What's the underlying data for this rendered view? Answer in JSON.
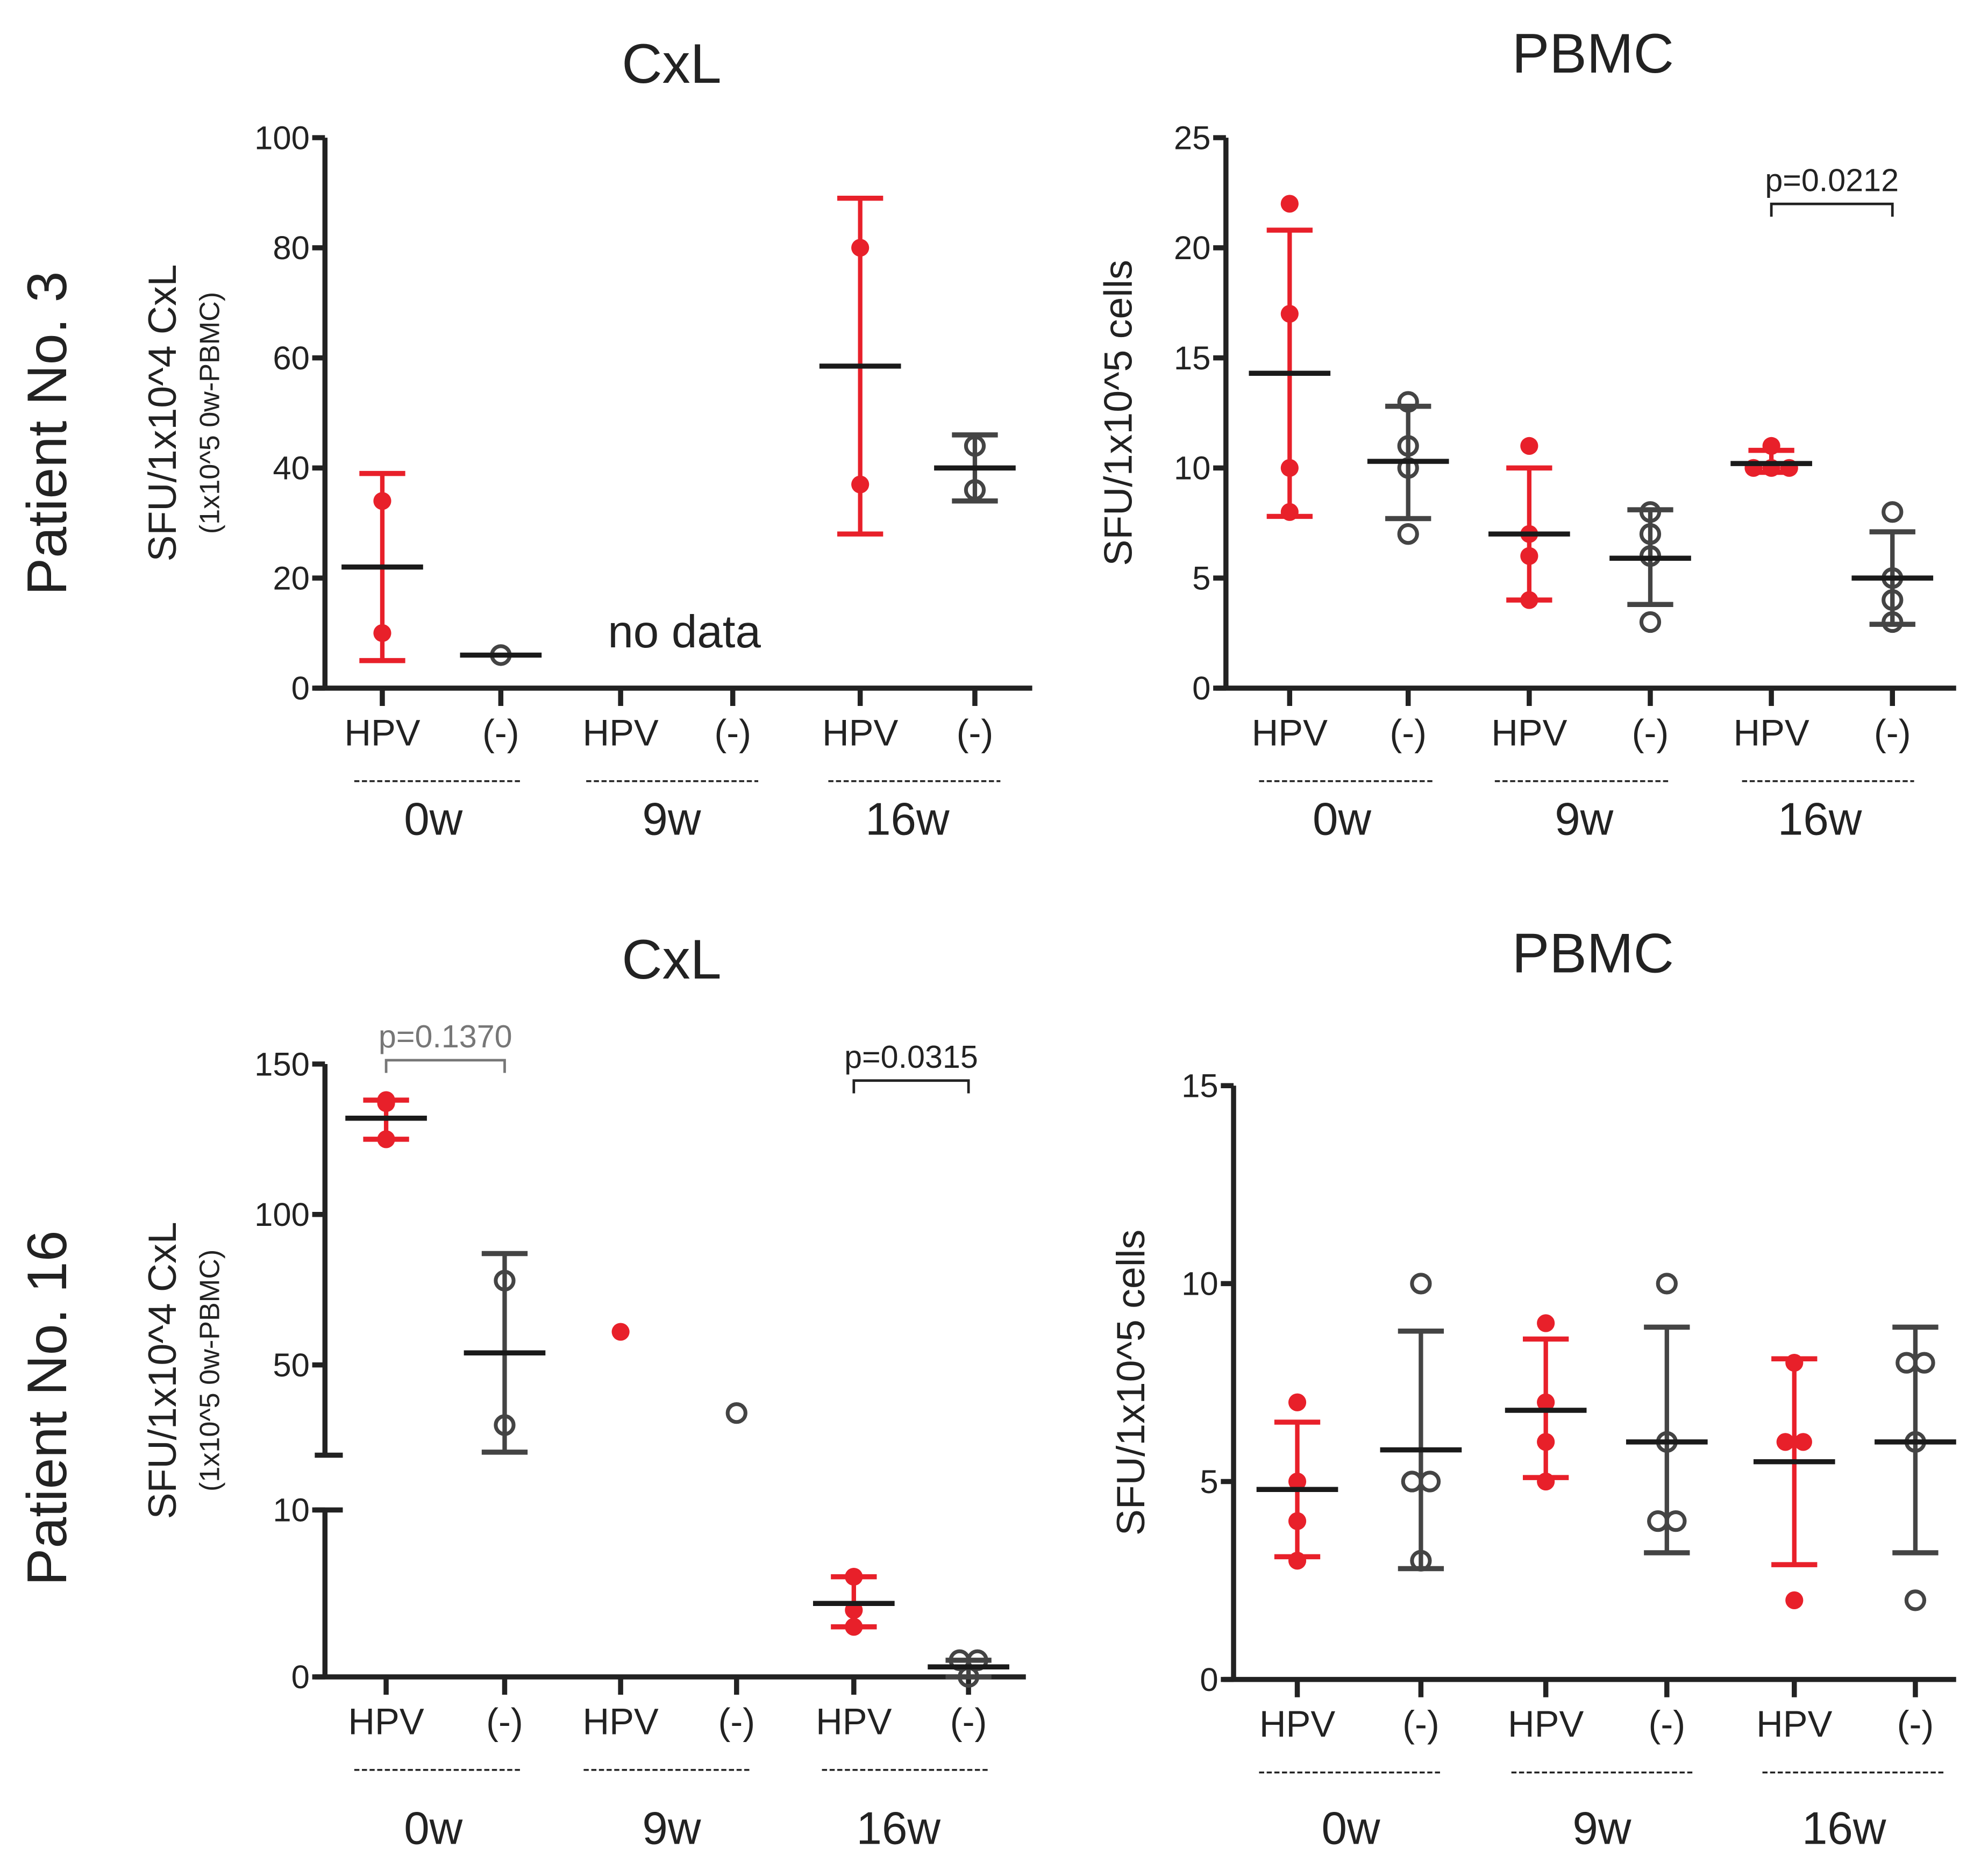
{
  "colors": {
    "hpv": "#e8202a",
    "neg": "#444444",
    "mean": "#1a1a1a",
    "axis": "#222222",
    "pval_gray": "#777777"
  },
  "chart_data": [
    {
      "id": "p3-cxl",
      "type": "scatter",
      "title": "CxL",
      "row_label": "Patient No. 3",
      "ylabel": "SFU/1x10^4 CxL",
      "ylabel_sub": "(1x10^5 0w-PBMC)",
      "ylim": [
        0,
        100
      ],
      "yticks": [
        0,
        20,
        40,
        60,
        80,
        100
      ],
      "categories": [
        "HPV",
        "(-)",
        "HPV",
        "(-)",
        "HPV",
        "(-)"
      ],
      "groups": [
        "0w",
        "9w",
        "16w"
      ],
      "annotation": "no data",
      "series": [
        {
          "name": "0w HPV",
          "kind": "hpv",
          "points": [
            34,
            10
          ],
          "mean": 22,
          "err": [
            5,
            39
          ]
        },
        {
          "name": "0w (-)",
          "kind": "neg",
          "points": [
            6
          ],
          "mean": 6,
          "err": null
        },
        {
          "name": "9w HPV",
          "kind": "hpv",
          "points": [],
          "mean": null,
          "err": null
        },
        {
          "name": "9w (-)",
          "kind": "neg",
          "points": [],
          "mean": null,
          "err": null
        },
        {
          "name": "16w HPV",
          "kind": "hpv",
          "points": [
            80,
            37
          ],
          "mean": 58.5,
          "err": [
            28,
            89
          ]
        },
        {
          "name": "16w (-)",
          "kind": "neg",
          "points": [
            44,
            36
          ],
          "mean": 40,
          "err": [
            34,
            46
          ]
        }
      ],
      "pvalues": []
    },
    {
      "id": "p3-pbmc",
      "type": "scatter",
      "title": "PBMC",
      "row_label": "",
      "ylabel": "SFU/1x10^5 cells",
      "ylabel_sub": "",
      "ylim": [
        0,
        25
      ],
      "yticks": [
        0,
        5,
        10,
        15,
        20,
        25
      ],
      "categories": [
        "HPV",
        "(-)",
        "HPV",
        "(-)",
        "HPV",
        "(-)"
      ],
      "groups": [
        "0w",
        "9w",
        "16w"
      ],
      "annotation": "",
      "series": [
        {
          "name": "0w HPV",
          "kind": "hpv",
          "points": [
            22,
            17,
            10,
            8
          ],
          "mean": 14.3,
          "err": [
            7.8,
            20.8
          ]
        },
        {
          "name": "0w (-)",
          "kind": "neg",
          "points": [
            13,
            11,
            10,
            7
          ],
          "mean": 10.3,
          "err": [
            7.7,
            12.8
          ]
        },
        {
          "name": "9w HPV",
          "kind": "hpv",
          "points": [
            11,
            7,
            6,
            4
          ],
          "mean": 7,
          "err": [
            4,
            10
          ]
        },
        {
          "name": "9w (-)",
          "kind": "neg",
          "points": [
            8,
            7,
            6,
            3
          ],
          "mean": 5.9,
          "err": [
            3.8,
            8.1
          ]
        },
        {
          "name": "16w HPV",
          "kind": "hpv",
          "points": [
            11,
            10,
            10,
            10
          ],
          "mean": 10.2,
          "err": [
            9.8,
            10.8
          ]
        },
        {
          "name": "16w (-)",
          "kind": "neg",
          "points": [
            8,
            5,
            4,
            3
          ],
          "mean": 5,
          "err": [
            2.9,
            7.1
          ]
        }
      ],
      "pvalues": [
        {
          "label": "p=0.0212",
          "from": 4,
          "to": 5,
          "gray": false
        }
      ]
    },
    {
      "id": "p16-cxl",
      "type": "scatter",
      "title": "CxL",
      "row_label": "Patient No. 16",
      "ylabel": "SFU/1x10^4 CxL",
      "ylabel_sub": "(1x10^5 0w-PBMC)",
      "ylim": [
        0,
        150
      ],
      "yticks": [
        0,
        10,
        50,
        100,
        150
      ],
      "axis_break": [
        10,
        20
      ],
      "categories": [
        "HPV",
        "(-)",
        "HPV",
        "(-)",
        "HPV",
        "(-)"
      ],
      "groups": [
        "0w",
        "9w",
        "16w"
      ],
      "annotation": "",
      "series": [
        {
          "name": "0w HPV",
          "kind": "hpv",
          "points": [
            138,
            137,
            125
          ],
          "mean": 132,
          "err": [
            125,
            138
          ]
        },
        {
          "name": "0w (-)",
          "kind": "neg",
          "points": [
            78,
            30
          ],
          "mean": 54,
          "err": [
            21,
            87
          ]
        },
        {
          "name": "9w HPV",
          "kind": "hpv",
          "points": [
            61
          ],
          "mean": null,
          "err": null
        },
        {
          "name": "9w (-)",
          "kind": "neg",
          "points": [
            34
          ],
          "mean": null,
          "err": null
        },
        {
          "name": "16w HPV",
          "kind": "hpv",
          "points": [
            6,
            4,
            3
          ],
          "mean": 4.4,
          "err": [
            3,
            6
          ]
        },
        {
          "name": "16w (-)",
          "kind": "neg",
          "points": [
            1,
            1,
            0
          ],
          "mean": 0.6,
          "err": [
            0,
            1
          ]
        }
      ],
      "pvalues": [
        {
          "label": "p=0.1370",
          "from": 0,
          "to": 1,
          "gray": true
        },
        {
          "label": "p=0.0315",
          "from": 4,
          "to": 5,
          "gray": false
        }
      ]
    },
    {
      "id": "p16-pbmc",
      "type": "scatter",
      "title": "PBMC",
      "row_label": "",
      "ylabel": "SFU/1x10^5 cells",
      "ylabel_sub": "",
      "ylim": [
        0,
        15
      ],
      "yticks": [
        0,
        5,
        10,
        15
      ],
      "categories": [
        "HPV",
        "(-)",
        "HPV",
        "(-)",
        "HPV",
        "(-)"
      ],
      "groups": [
        "0w",
        "9w",
        "16w"
      ],
      "annotation": "",
      "series": [
        {
          "name": "0w HPV",
          "kind": "hpv",
          "points": [
            7,
            5,
            4,
            3
          ],
          "mean": 4.8,
          "err": [
            3.1,
            6.5
          ]
        },
        {
          "name": "0w (-)",
          "kind": "neg",
          "points": [
            10,
            5,
            5,
            3
          ],
          "mean": 5.8,
          "err": [
            2.8,
            8.8
          ]
        },
        {
          "name": "9w HPV",
          "kind": "hpv",
          "points": [
            9,
            7,
            6,
            5
          ],
          "mean": 6.8,
          "err": [
            5.1,
            8.6
          ]
        },
        {
          "name": "9w (-)",
          "kind": "neg",
          "points": [
            10,
            6,
            4,
            4
          ],
          "mean": 6.0,
          "err": [
            3.2,
            8.9
          ]
        },
        {
          "name": "16w HPV",
          "kind": "hpv",
          "points": [
            8,
            6,
            6,
            2
          ],
          "mean": 5.5,
          "err": [
            2.9,
            8.1
          ]
        },
        {
          "name": "16w (-)",
          "kind": "neg",
          "points": [
            8,
            8,
            6,
            2
          ],
          "mean": 6.0,
          "err": [
            3.2,
            8.9
          ]
        }
      ],
      "pvalues": []
    }
  ]
}
